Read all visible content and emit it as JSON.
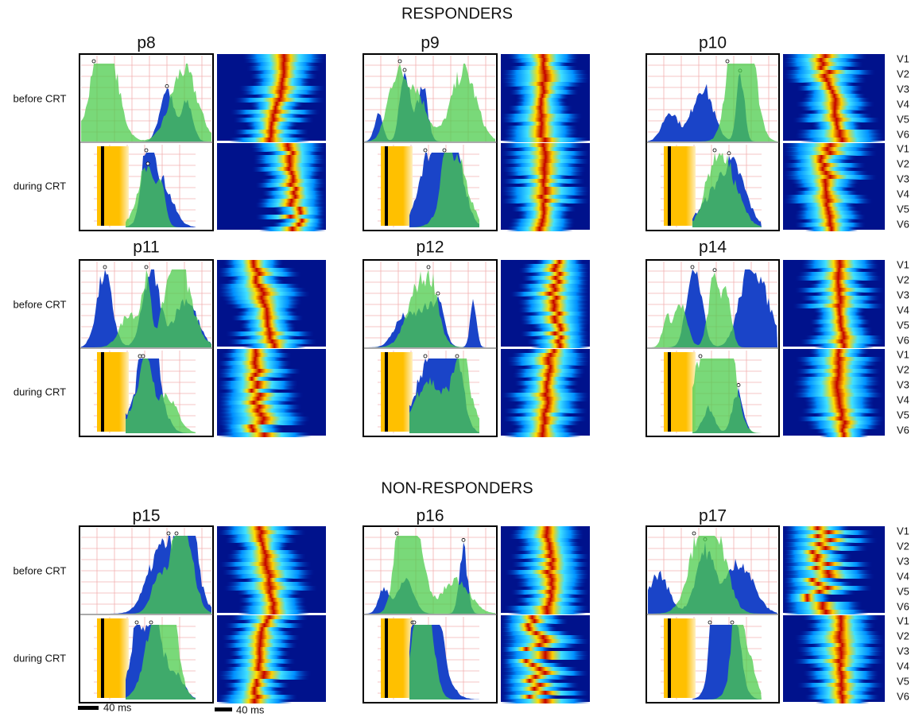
{
  "sections": [
    {
      "title": "RESPONDERS",
      "panels": [
        {
          "label": "p8"
        },
        {
          "label": "p9"
        },
        {
          "label": "p10"
        },
        {
          "label": "p11"
        },
        {
          "label": "p12"
        },
        {
          "label": "p14"
        }
      ]
    },
    {
      "title": "NON-RESPONDERS",
      "panels": [
        {
          "label": "p15"
        },
        {
          "label": "p16"
        },
        {
          "label": "p17"
        }
      ]
    }
  ],
  "row_labels": [
    "before CRT",
    "during CRT"
  ],
  "leads": [
    "V1",
    "V2",
    "V3",
    "V4",
    "V5",
    "V6"
  ],
  "scale_bars": [
    "40 ms",
    "40 ms"
  ]
}
